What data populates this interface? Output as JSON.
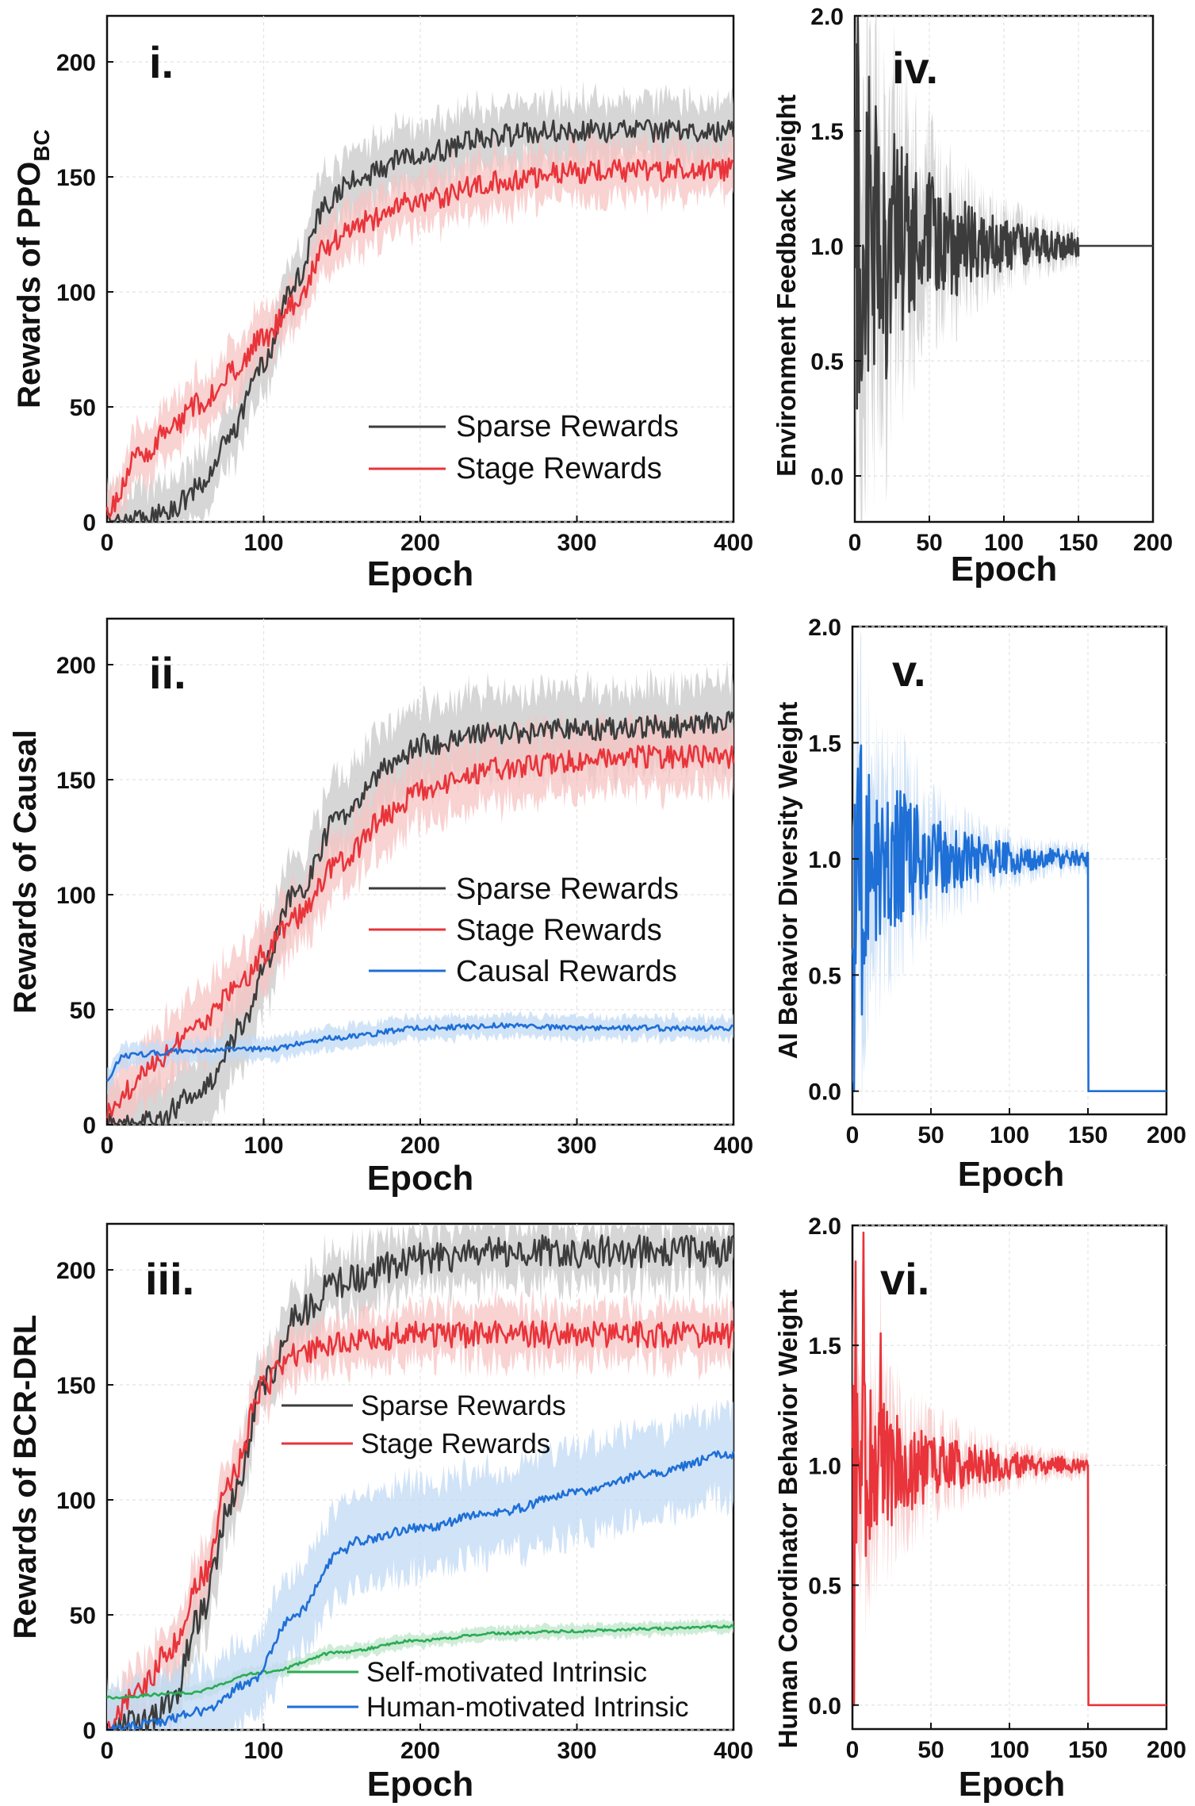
{
  "colors": {
    "sparse": "#3c3c3c",
    "sparse_band": "#c8c8c8",
    "stage": "#e8343a",
    "stage_band": "#f7c3c3",
    "causal": "#1e6fd6",
    "causal_band": "#c2d9f4",
    "self": "#2bab55",
    "self_band": "#bde6c9",
    "weight_black": "#3c3c3c",
    "weight_blue": "#1e6fd6",
    "weight_red": "#e8343a"
  },
  "chart_data": [
    {
      "id": "i",
      "type": "line",
      "panel_label": "i.",
      "ylabel": "Rewards of PPO",
      "ylabel_sub": "BC",
      "xlabel": "Epoch",
      "xlim": [
        0,
        400
      ],
      "ylim": [
        0,
        220
      ],
      "xticks": [
        "0",
        "100",
        "200",
        "300",
        "400"
      ],
      "yticks": [
        "0",
        "50",
        "100",
        "150",
        "200"
      ],
      "legend_position": "lower-right",
      "series": [
        {
          "name": "Sparse Rewards",
          "color_key": "sparse",
          "band_key": "sparse_band",
          "band": 14,
          "noise": 5,
          "x": [
            0,
            20,
            40,
            60,
            80,
            100,
            120,
            140,
            160,
            200,
            250,
            300,
            350,
            400
          ],
          "y": [
            0,
            1,
            5,
            15,
            40,
            70,
            105,
            138,
            150,
            160,
            168,
            170,
            170,
            170
          ]
        },
        {
          "name": "Stage Rewards",
          "color_key": "stage",
          "band_key": "stage_band",
          "band": 12,
          "noise": 5,
          "x": [
            0,
            20,
            40,
            60,
            80,
            100,
            120,
            140,
            160,
            200,
            250,
            300,
            350,
            400
          ],
          "y": [
            5,
            28,
            40,
            52,
            65,
            80,
            95,
            120,
            130,
            140,
            148,
            152,
            153,
            153
          ]
        }
      ]
    },
    {
      "id": "ii",
      "type": "line",
      "panel_label": "ii.",
      "ylabel": "Rewards of Causal",
      "xlabel": "Epoch",
      "xlim": [
        0,
        400
      ],
      "ylim": [
        0,
        220
      ],
      "xticks": [
        "0",
        "100",
        "200",
        "300",
        "400"
      ],
      "yticks": [
        "0",
        "50",
        "100",
        "150",
        "200"
      ],
      "legend_position": "center-right",
      "series": [
        {
          "name": "Sparse Rewards",
          "color_key": "sparse",
          "band_key": "sparse_band",
          "band": 18,
          "noise": 5,
          "x": [
            0,
            30,
            60,
            90,
            100,
            120,
            150,
            180,
            200,
            250,
            300,
            350,
            400
          ],
          "y": [
            0,
            2,
            15,
            45,
            70,
            100,
            135,
            155,
            165,
            170,
            172,
            173,
            175
          ]
        },
        {
          "name": "Stage Rewards",
          "color_key": "stage",
          "band_key": "stage_band",
          "band": 15,
          "noise": 5,
          "x": [
            0,
            30,
            60,
            90,
            100,
            120,
            150,
            180,
            200,
            250,
            300,
            350,
            400
          ],
          "y": [
            5,
            28,
            45,
            65,
            75,
            90,
            115,
            135,
            145,
            155,
            158,
            160,
            160
          ]
        },
        {
          "name": "Causal Rewards",
          "color_key": "causal",
          "band_key": "causal_band",
          "band": 5,
          "noise": 1.2,
          "x": [
            0,
            10,
            50,
            100,
            150,
            200,
            250,
            300,
            400
          ],
          "y": [
            20,
            30,
            32,
            33,
            38,
            42,
            43,
            42,
            42
          ]
        }
      ]
    },
    {
      "id": "iii",
      "type": "line",
      "panel_label": "iii.",
      "ylabel": "Rewards of BCR-DRL",
      "xlabel": "Epoch",
      "xlim": [
        0,
        400
      ],
      "ylim": [
        0,
        220
      ],
      "xticks": [
        "0",
        "100",
        "200",
        "300",
        "400"
      ],
      "yticks": [
        "0",
        "50",
        "100",
        "150",
        "200"
      ],
      "legend_position": "split",
      "series": [
        {
          "name": "Sparse Rewards",
          "color_key": "sparse",
          "band_key": "sparse_band",
          "band": 14,
          "noise": 7,
          "x": [
            0,
            20,
            40,
            60,
            80,
            100,
            120,
            150,
            200,
            250,
            300,
            400
          ],
          "y": [
            0,
            2,
            10,
            50,
            100,
            150,
            180,
            195,
            205,
            208,
            208,
            208
          ]
        },
        {
          "name": "Stage Rewards",
          "color_key": "stage",
          "band_key": "stage_band",
          "band": 12,
          "noise": 6,
          "x": [
            0,
            20,
            40,
            60,
            80,
            100,
            120,
            150,
            200,
            250,
            300,
            400
          ],
          "y": [
            2,
            15,
            35,
            65,
            110,
            150,
            162,
            168,
            172,
            172,
            172,
            172
          ]
        },
        {
          "name": "Self-motivated Intrinsic",
          "color_key": "self",
          "band_key": "self_band",
          "band": 3,
          "noise": 0.6,
          "x": [
            0,
            50,
            100,
            150,
            200,
            250,
            300,
            350,
            400
          ],
          "y": [
            14,
            16,
            25,
            34,
            39,
            42,
            43,
            44,
            45
          ]
        },
        {
          "name": "Human-motivated Intrinsic",
          "color_key": "causal",
          "band_key": "causal_band",
          "band": 20,
          "noise": 2,
          "x": [
            0,
            30,
            60,
            90,
            120,
            150,
            160,
            200,
            250,
            300,
            350,
            400
          ],
          "y": [
            0,
            3,
            8,
            20,
            50,
            78,
            82,
            88,
            95,
            103,
            112,
            120
          ]
        }
      ]
    },
    {
      "id": "iv",
      "type": "line",
      "panel_label": "iv.",
      "ylabel": "Environment Feedback Weight",
      "xlabel": "Epoch",
      "xlim": [
        0,
        200
      ],
      "ylim": [
        -0.2,
        2.0
      ],
      "xticks": [
        "0",
        "50",
        "100",
        "150",
        "200"
      ],
      "yticks": [
        "0.0",
        "0.5",
        "1.0",
        "1.5",
        "2.0"
      ],
      "series": [
        {
          "name": "Environment Feedback Weight",
          "color_key": "weight_black",
          "band_key": "sparse_band",
          "band_scale": 0.9,
          "osc_amp": 0.9,
          "osc_decay": 45,
          "spikes": [
            [
              2,
              2.0
            ],
            [
              4,
              0.55
            ],
            [
              8,
              1.58
            ],
            [
              12,
              0.7
            ]
          ],
          "cut_epoch": 150,
          "after_value": 1.0
        }
      ]
    },
    {
      "id": "v",
      "type": "line",
      "panel_label": "v.",
      "ylabel": "AI Behavior Diversity Weight",
      "xlabel": "Epoch",
      "xlim": [
        0,
        200
      ],
      "ylim": [
        -0.1,
        2.0
      ],
      "xticks": [
        "0",
        "50",
        "100",
        "150",
        "200"
      ],
      "yticks": [
        "0.0",
        "0.5",
        "1.0",
        "1.5",
        "2.0"
      ],
      "series": [
        {
          "name": "AI Behavior Diversity Weight",
          "color_key": "weight_blue",
          "band_key": "causal_band",
          "band_scale": 0.9,
          "osc_amp": 0.6,
          "osc_decay": 40,
          "spikes": [
            [
              1,
              0.0
            ],
            [
              3,
              1.25
            ],
            [
              6,
              0.33
            ],
            [
              9,
              1.27
            ],
            [
              15,
              0.65
            ],
            [
              45,
              1.1
            ]
          ],
          "cut_epoch": 150,
          "after_value": 0.0
        }
      ]
    },
    {
      "id": "vi",
      "type": "line",
      "panel_label": "vi.",
      "ylabel": "Human Coordinator Behavior Weight",
      "xlabel": "Epoch",
      "xlim": [
        0,
        200
      ],
      "ylim": [
        -0.1,
        2.0
      ],
      "xticks": [
        "0",
        "50",
        "100",
        "150",
        "200"
      ],
      "yticks": [
        "0.0",
        "0.5",
        "1.0",
        "1.5",
        "2.0"
      ],
      "series": [
        {
          "name": "Human Coordinator Behavior Weight",
          "color_key": "weight_red",
          "band_key": "stage_band",
          "band_scale": 0.9,
          "osc_amp": 0.45,
          "osc_decay": 40,
          "spikes": [
            [
              1,
              0.0
            ],
            [
              2,
              1.85
            ],
            [
              5,
              0.8
            ],
            [
              7,
              1.97
            ],
            [
              10,
              0.75
            ],
            [
              18,
              1.55
            ]
          ],
          "cut_epoch": 150,
          "after_value": 0.0
        }
      ]
    }
  ]
}
